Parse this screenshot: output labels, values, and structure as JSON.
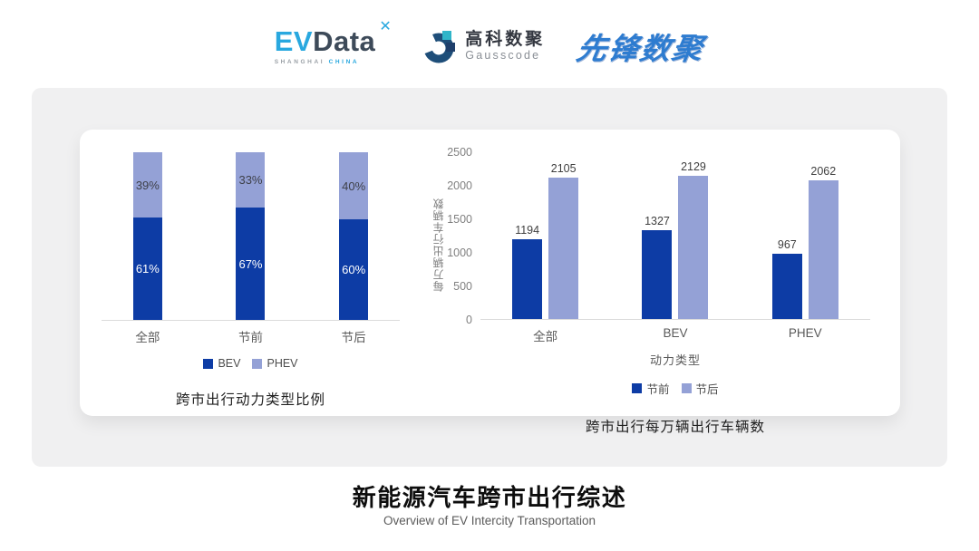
{
  "header": {
    "evdata": {
      "ev": "EV",
      "data": "Data",
      "sub1": "SHANGHAI",
      "sub2": "CHINA"
    },
    "gausscode": {
      "cn": "高科数聚",
      "en": "Gausscode"
    },
    "pioneer": {
      "text": "先锋数聚"
    }
  },
  "icons": {
    "evdata_spark": "✕"
  },
  "colors": {
    "dark_blue": "#0D3CA5",
    "light_blue": "#94A1D6",
    "card_gray": "#F0F0F1",
    "axis_gray": "#DBDBDB"
  },
  "chart_data": [
    {
      "type": "bar",
      "subtype": "stacked-percent",
      "title": "跨市出行动力类型比例",
      "categories": [
        "全部",
        "节前",
        "节后"
      ],
      "series": [
        {
          "name": "BEV",
          "color": "#0D3CA5",
          "values": [
            61,
            67,
            60
          ],
          "labels": [
            "61%",
            "67%",
            "60%"
          ]
        },
        {
          "name": "PHEV",
          "color": "#94A1D6",
          "values": [
            39,
            33,
            40
          ],
          "labels": [
            "39%",
            "33%",
            "40%"
          ]
        }
      ],
      "ylim": [
        0,
        100
      ],
      "grid": false,
      "legend_position": "bottom"
    },
    {
      "type": "bar",
      "subtype": "grouped",
      "title": "跨市出行每万辆出行车辆数",
      "xlabel": "动力类型",
      "ylabel": "每万辆出行车辆数",
      "categories": [
        "全部",
        "BEV",
        "PHEV"
      ],
      "yticks": [
        0,
        500,
        1000,
        1500,
        2000,
        2500
      ],
      "ylim": [
        0,
        2500
      ],
      "grid": false,
      "series": [
        {
          "name": "节前",
          "color": "#0D3CA5",
          "values": [
            1194,
            1327,
            967
          ]
        },
        {
          "name": "节后",
          "color": "#94A1D6",
          "values": [
            2105,
            2129,
            2062
          ]
        }
      ],
      "legend_position": "bottom"
    }
  ],
  "footer": {
    "title": "新能源汽车跨市出行综述",
    "subtitle": "Overview of EV Intercity Transportation"
  }
}
